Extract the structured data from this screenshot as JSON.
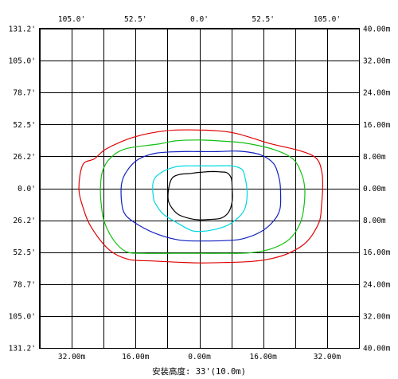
{
  "chart_data": {
    "type": "contour",
    "caption": "安装高度: 33'(10.0m)",
    "axes": {
      "top_ticks": [
        "105.0'",
        "52.5'",
        "0.0'",
        "52.5'",
        "105.0'"
      ],
      "top_tick_at_m": [
        -32,
        -16,
        0,
        16,
        32
      ],
      "bottom_ticks": [
        "32.00m",
        "16.00m",
        "0.00m",
        "16.00m",
        "32.00m"
      ],
      "bottom_tick_at_m": [
        -32,
        -16,
        0,
        16,
        32
      ],
      "left_ticks": [
        "131.2'",
        "105.0'",
        "78.7'",
        "52.5'",
        "26.2'",
        "0.0'",
        "26.2'",
        "52.5'",
        "78.7'",
        "105.0'",
        "131.2'"
      ],
      "right_ticks": [
        "40.00m",
        "32.00m",
        "24.00m",
        "16.00m",
        "8.00m",
        "0.00m",
        "8.00m",
        "16.00m",
        "24.00m",
        "32.00m",
        "40.00m"
      ],
      "side_tick_at_m": [
        40,
        32,
        24,
        16,
        8,
        0,
        -8,
        -16,
        -24,
        -32,
        -40
      ],
      "xlim_m": [
        -40,
        40
      ],
      "ylim_m": [
        -40,
        40
      ],
      "x_grid_m": [
        -40,
        -32,
        -24,
        -16,
        -8,
        0,
        8,
        16,
        24,
        32,
        40
      ],
      "y_grid_m": [
        -40,
        -32,
        -24,
        -16,
        -8,
        0,
        8,
        16,
        24,
        32,
        40
      ],
      "grid": true
    },
    "series": [
      {
        "color": "#e00000",
        "points_m": [
          [
            30.9,
            0
          ],
          [
            30.7,
            4
          ],
          [
            29.4,
            7.4
          ],
          [
            25.6,
            9.3
          ],
          [
            17.4,
            11.3
          ],
          [
            8.5,
            13.9
          ],
          [
            0,
            14.6
          ],
          [
            -8.5,
            14.4
          ],
          [
            -16.5,
            12.8
          ],
          [
            -23.3,
            9.9
          ],
          [
            -26.3,
            7.4
          ],
          [
            -29.2,
            5.9
          ],
          [
            -30.2,
            0
          ],
          [
            -29,
            -5.3
          ],
          [
            -26.9,
            -10.1
          ],
          [
            -22.5,
            -15.5
          ],
          [
            -17.8,
            -17.8
          ],
          [
            -12,
            -18.2
          ],
          [
            -6,
            -18.5
          ],
          [
            0,
            -18.7
          ],
          [
            6,
            -18.6
          ],
          [
            12,
            -18.4
          ],
          [
            17.2,
            -17.8
          ],
          [
            22.3,
            -16.3
          ],
          [
            26.9,
            -13.4
          ],
          [
            30,
            -8.5
          ],
          [
            30.6,
            -4.2
          ]
        ]
      },
      {
        "color": "#10c010",
        "points_m": [
          [
            26.4,
            0
          ],
          [
            25.6,
            3.7
          ],
          [
            23.5,
            7.3
          ],
          [
            19.3,
            9.5
          ],
          [
            12.3,
            11.2
          ],
          [
            6.2,
            11.8
          ],
          [
            0,
            12.1
          ],
          [
            -6,
            11.9
          ],
          [
            -10.2,
            11.1
          ],
          [
            -18.5,
            9.9
          ],
          [
            -22.5,
            7.4
          ],
          [
            -24.3,
            4.2
          ],
          [
            -24.8,
            0
          ],
          [
            -24.6,
            -4
          ],
          [
            -23.8,
            -8.5
          ],
          [
            -21.4,
            -13.1
          ],
          [
            -18.3,
            -15.9
          ],
          [
            -13.9,
            -16.3
          ],
          [
            -6.2,
            -16.3
          ],
          [
            0,
            -16.3
          ],
          [
            6.4,
            -16.3
          ],
          [
            12.4,
            -16.2
          ],
          [
            18.2,
            -15.1
          ],
          [
            22.5,
            -12.8
          ],
          [
            25.2,
            -8.9
          ],
          [
            26.2,
            -4.6
          ]
        ]
      },
      {
        "color": "#1020c0",
        "points_m": [
          [
            20.3,
            0
          ],
          [
            19.9,
            2.9
          ],
          [
            18.6,
            6.2
          ],
          [
            15.3,
            8.4
          ],
          [
            10,
            9.3
          ],
          [
            4.5,
            9.2
          ],
          [
            0,
            9.2
          ],
          [
            -4.5,
            9.2
          ],
          [
            -10.9,
            8.8
          ],
          [
            -15.4,
            7.2
          ],
          [
            -18.2,
            4.3
          ],
          [
            -19.5,
            1.2
          ],
          [
            -19.5,
            -3.5
          ],
          [
            -18.5,
            -6.7
          ],
          [
            -15.1,
            -9.3
          ],
          [
            -10,
            -11.7
          ],
          [
            -4.8,
            -13
          ],
          [
            0,
            -13.2
          ],
          [
            6.4,
            -13.1
          ],
          [
            10.6,
            -12.7
          ],
          [
            15.2,
            -11
          ],
          [
            18.5,
            -8.3
          ],
          [
            20.2,
            -5.1
          ]
        ]
      },
      {
        "color": "#00d8e0",
        "points_m": [
          [
            11.9,
            0
          ],
          [
            11.4,
            2.9
          ],
          [
            10.6,
            4.8
          ],
          [
            8,
            5.6
          ],
          [
            3.6,
            5.6
          ],
          [
            0,
            5.6
          ],
          [
            -3.6,
            5.6
          ],
          [
            -6.3,
            5.3
          ],
          [
            -9.3,
            4.1
          ],
          [
            -11.5,
            1.9
          ],
          [
            -11.5,
            -2.5
          ],
          [
            -10.6,
            -4.5
          ],
          [
            -9,
            -6.5
          ],
          [
            -5.5,
            -8.7
          ],
          [
            -2.2,
            -10.5
          ],
          [
            0,
            -10.8
          ],
          [
            3.5,
            -10.4
          ],
          [
            7,
            -9.3
          ],
          [
            9.7,
            -7.4
          ],
          [
            11.3,
            -5.3
          ],
          [
            11.9,
            -2.8
          ]
        ]
      },
      {
        "color": "#000000",
        "points_m": [
          [
            8.2,
            0
          ],
          [
            8,
            2.5
          ],
          [
            6.9,
            3.9
          ],
          [
            5.2,
            4.1
          ],
          [
            3.5,
            4.2
          ],
          [
            0,
            4
          ],
          [
            -2.5,
            3.7
          ],
          [
            -4.8,
            3.5
          ],
          [
            -6.8,
            2.6
          ],
          [
            -7.7,
            0
          ],
          [
            -7.8,
            -3
          ],
          [
            -6.9,
            -4.9
          ],
          [
            -5.2,
            -6.6
          ],
          [
            -2.3,
            -7.6
          ],
          [
            0,
            -7.9
          ],
          [
            2.5,
            -7.8
          ],
          [
            5.4,
            -7.5
          ],
          [
            7.3,
            -6
          ],
          [
            8.2,
            -3.3
          ]
        ]
      }
    ]
  }
}
